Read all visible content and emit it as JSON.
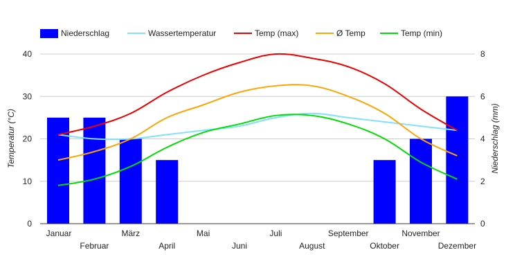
{
  "chart_data": {
    "type": "bar",
    "categories": [
      "Januar",
      "Februar",
      "März",
      "April",
      "Mai",
      "Juni",
      "Juli",
      "August",
      "September",
      "Oktober",
      "November",
      "Dezember"
    ],
    "series": [
      {
        "name": "Niederschlag",
        "type": "bar",
        "axis": "right",
        "color": "#0000ff",
        "values": [
          5,
          5,
          4,
          3,
          0,
          0,
          0,
          0,
          0,
          3,
          4,
          6
        ]
      },
      {
        "name": "Wassertemperatur",
        "type": "line",
        "axis": "left",
        "color": "#80e0ff",
        "values": [
          21,
          20,
          20,
          21,
          22,
          23,
          25,
          26,
          25,
          24,
          23,
          22
        ]
      },
      {
        "name": "Temp (max)",
        "type": "line",
        "axis": "left",
        "color": "#ee0000",
        "values": [
          21,
          23,
          26,
          31,
          35,
          38,
          40,
          39,
          37,
          33,
          27,
          22
        ]
      },
      {
        "name": "Ø Temp",
        "type": "line",
        "axis": "left",
        "color": "#ffa500",
        "values": [
          15,
          17,
          20,
          25,
          28,
          31,
          32.5,
          32.5,
          30,
          26,
          20,
          16
        ]
      },
      {
        "name": "Temp (min)",
        "type": "line",
        "axis": "left",
        "color": "#00dd00",
        "values": [
          9,
          10.5,
          13.5,
          18,
          21.5,
          23.5,
          25.5,
          25.5,
          23.5,
          20,
          14.5,
          10.5
        ]
      }
    ],
    "ylabel": "Temperatur (°C)",
    "y2label": "Niederschlag (mm)",
    "ylim": [
      0,
      40
    ],
    "y2lim": [
      0,
      8
    ],
    "yticks": [
      "0",
      "10",
      "20",
      "30",
      "40"
    ],
    "y2ticks": [
      "0",
      "2",
      "4",
      "6",
      "8"
    ],
    "grid": true,
    "legend_position": "top"
  }
}
